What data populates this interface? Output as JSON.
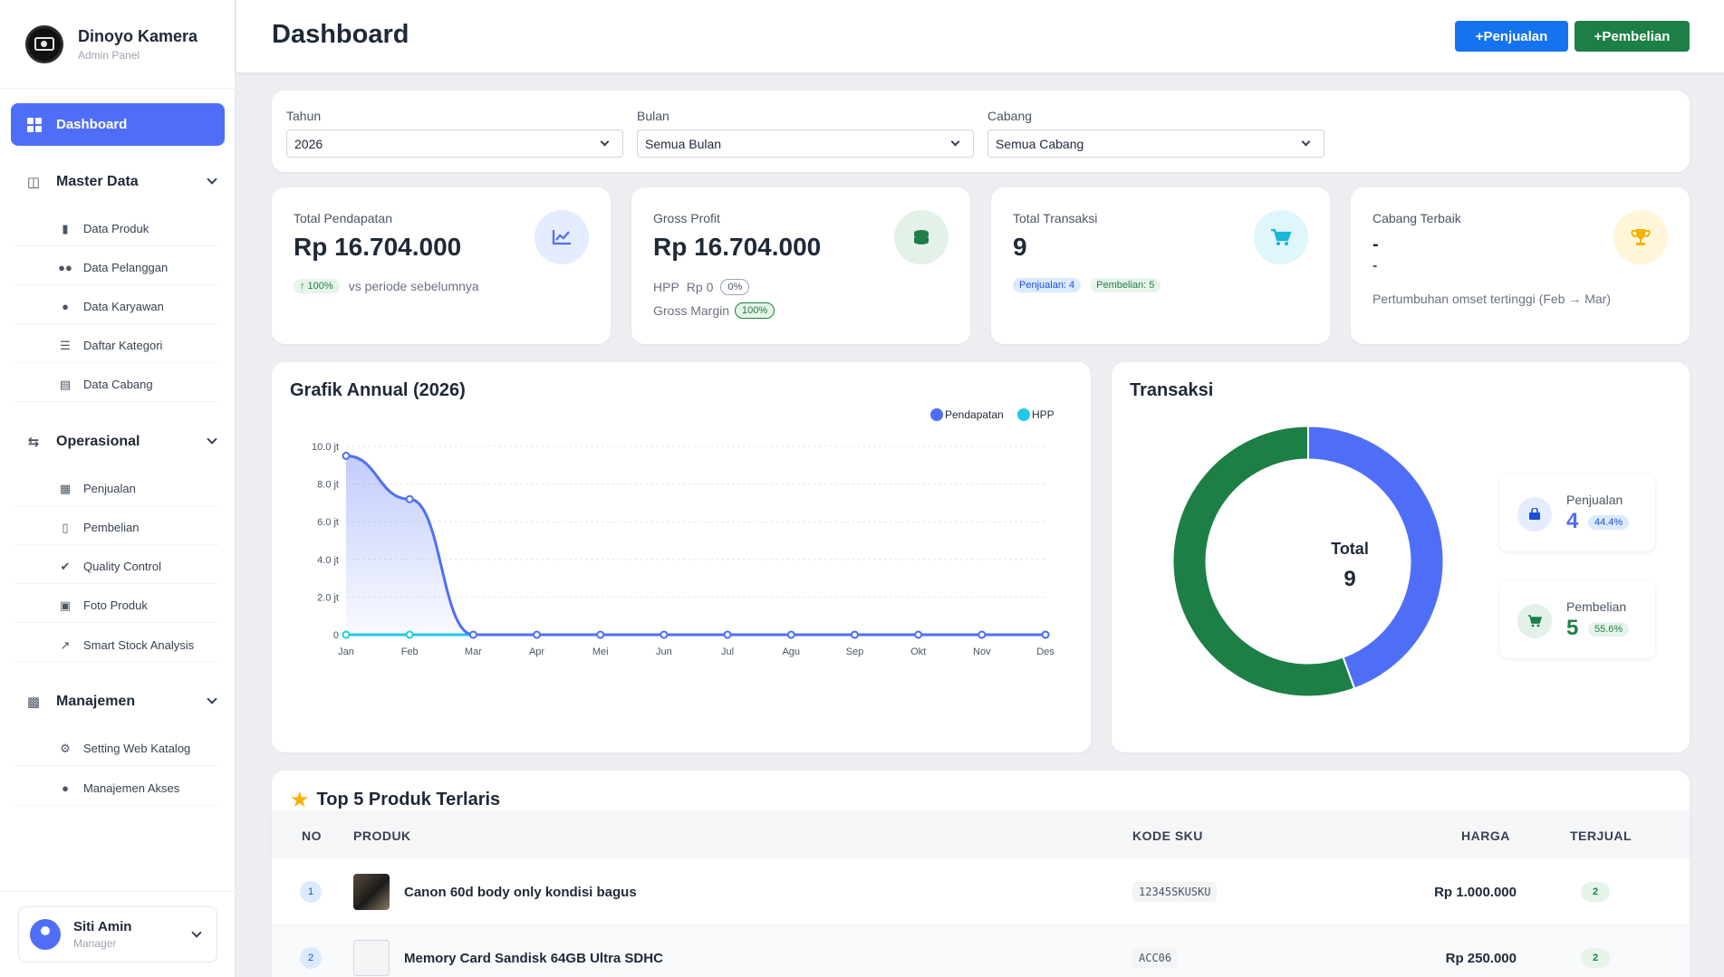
{
  "brand": {
    "title": "Dinoyo Kamera",
    "subtitle": "Admin Panel"
  },
  "sidebar": {
    "dashboard_label": "Dashboard",
    "groups": [
      {
        "label": "Master Data",
        "items": [
          {
            "label": "Data Produk",
            "icon": "box-icon"
          },
          {
            "label": "Data Pelanggan",
            "icon": "users-icon"
          },
          {
            "label": "Data Karyawan",
            "icon": "user-tie-icon"
          },
          {
            "label": "Daftar Kategori",
            "icon": "list-icon"
          },
          {
            "label": "Data Cabang",
            "icon": "store-icon"
          }
        ]
      },
      {
        "label": "Operasional",
        "items": [
          {
            "label": "Penjualan",
            "icon": "cart-icon"
          },
          {
            "label": "Pembelian",
            "icon": "bag-icon"
          },
          {
            "label": "Quality Control",
            "icon": "check-circle-icon"
          },
          {
            "label": "Foto Produk",
            "icon": "image-icon"
          },
          {
            "label": "Smart Stock Analysis",
            "icon": "chart-line-icon"
          }
        ]
      },
      {
        "label": "Manajemen",
        "items": [
          {
            "label": "Setting Web Katalog",
            "icon": "gear-icon"
          },
          {
            "label": "Manajemen Akses",
            "icon": "user-lock-icon"
          }
        ]
      }
    ]
  },
  "user": {
    "name": "Siti Amin",
    "role": "Manager"
  },
  "header": {
    "title": "Dashboard",
    "btn_sales": "+Penjualan",
    "btn_purchase": "+Pembelian"
  },
  "filters": {
    "year": {
      "label": "Tahun",
      "value": "2026"
    },
    "month": {
      "label": "Bulan",
      "value": "Semua Bulan"
    },
    "branch": {
      "label": "Cabang",
      "value": "Semua Cabang"
    }
  },
  "stats": {
    "revenue": {
      "label": "Total Pendapatan",
      "value": "Rp 16.704.000",
      "badge": "↑ 100%",
      "note": "vs periode sebelumnya"
    },
    "profit": {
      "label": "Gross Profit",
      "value": "Rp 16.704.000",
      "hpp_label": "HPP",
      "hpp_value": "Rp 0",
      "hpp_pct": "0%",
      "margin_label": "Gross Margin",
      "margin_pct": "100%"
    },
    "transactions": {
      "label": "Total Transaksi",
      "value": "9",
      "sales_badge": "Penjualan: 4",
      "purchase_badge": "Pembelian: 5"
    },
    "best_branch": {
      "label": "Cabang Terbaik",
      "line1": "-",
      "line2": "-",
      "note": "Pertumbuhan omset tertinggi (Feb → Mar)"
    }
  },
  "colors": {
    "primary": "#4f6ef7",
    "hpp": "#1ec8e8",
    "green": "#1d7f46",
    "blue_btn": "#1673f0",
    "gold": "#f5b100"
  },
  "chart_data": {
    "type": "line",
    "title": "Grafik Annual (2026)",
    "categories": [
      "Jan",
      "Feb",
      "Mar",
      "Apr",
      "Mei",
      "Jun",
      "Jul",
      "Agu",
      "Sep",
      "Okt",
      "Nov",
      "Des"
    ],
    "series": [
      {
        "name": "Pendapatan",
        "values": [
          9.5,
          7.2,
          0,
          0,
          0,
          0,
          0,
          0,
          0,
          0,
          0,
          0
        ]
      },
      {
        "name": "HPP",
        "values": [
          0,
          0,
          0,
          0,
          0,
          0,
          0,
          0,
          0,
          0,
          0,
          0
        ]
      }
    ],
    "y_ticks": [
      "0",
      "2.0 jt",
      "4.0 jt",
      "6.0 jt",
      "8.0 jt",
      "10.0 jt"
    ],
    "ylim": [
      0,
      10
    ],
    "legend": "top-right",
    "grid": true
  },
  "donut": {
    "title": "Transaksi",
    "total_label": "Total",
    "total_value": "9",
    "segments": [
      {
        "name": "Penjualan",
        "value": 4,
        "pct": "44.4%",
        "color": "#4f6ef7"
      },
      {
        "name": "Pembelian",
        "value": 5,
        "pct": "55.6%",
        "color": "#1d7f46"
      }
    ]
  },
  "top_products": {
    "title": "Top 5 Produk Terlaris",
    "columns": {
      "no": "NO",
      "product": "PRODUK",
      "sku": "KODE SKU",
      "price": "HARGA",
      "sold": "TERJUAL"
    },
    "rows": [
      {
        "no": "1",
        "name": "Canon 60d body only kondisi bagus",
        "sku": "12345SKUSKU",
        "price": "Rp 1.000.000",
        "sold": "2"
      },
      {
        "no": "2",
        "name": "Memory Card Sandisk 64GB Ultra SDHC",
        "sku": "ACC06",
        "price": "Rp 250.000",
        "sold": "2"
      }
    ]
  }
}
